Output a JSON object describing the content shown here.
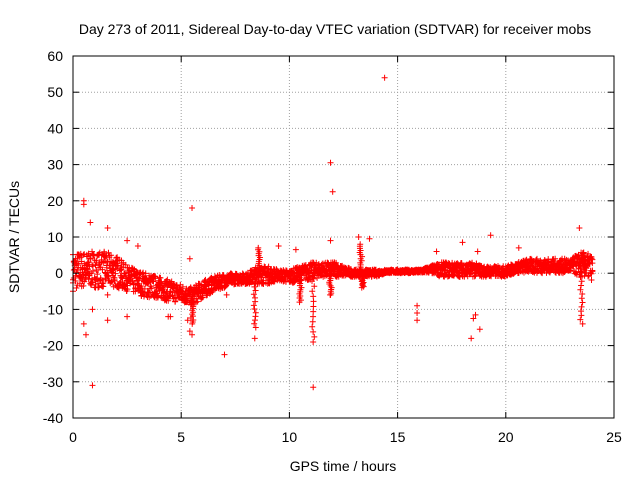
{
  "chart_data": {
    "type": "scatter",
    "title": "Day 273 of 2011, Sidereal Day-to-day VTEC variation (SDTVAR) for receiver mobs",
    "xlabel": "GPS time / hours",
    "ylabel": "SDTVAR / TECUs",
    "xlim": [
      0,
      25
    ],
    "ylim": [
      -40,
      60
    ],
    "xticks": [
      0,
      5,
      10,
      15,
      20,
      25
    ],
    "yticks": [
      -40,
      -30,
      -20,
      -10,
      0,
      10,
      20,
      30,
      40,
      50,
      60
    ],
    "grid": true,
    "marker": "+",
    "colors": {
      "series": "#ff0000",
      "grid": "#a0a0a0",
      "axis": "#000000"
    },
    "series": [
      {
        "name": "SDTVAR",
        "band": {
          "x": [
            0,
            0.5,
            1,
            1.5,
            2,
            2.5,
            3,
            3.5,
            4,
            4.5,
            5,
            5.5,
            6,
            6.5,
            7,
            7.5,
            8,
            8.5,
            9,
            9.5,
            10,
            10.5,
            11,
            11.5,
            12,
            12.5,
            13,
            13.5,
            14,
            14.5,
            15,
            15.5,
            16,
            16.5,
            17,
            17.5,
            18,
            18.5,
            19,
            19.5,
            20,
            20.5,
            21,
            21.5,
            22,
            22.5,
            23,
            23.5,
            24
          ],
          "upper": [
            6,
            6,
            6,
            6,
            5,
            2,
            1,
            0,
            -1,
            -2,
            -3,
            -4,
            -2,
            -1,
            0,
            0,
            0,
            2,
            2,
            1,
            1,
            2,
            3,
            3,
            3,
            2,
            1,
            1,
            1,
            1,
            1,
            1,
            1,
            2,
            3,
            3,
            3,
            3,
            2,
            2,
            2,
            3,
            4,
            4,
            4,
            4,
            4,
            6,
            5
          ],
          "lower": [
            -5,
            -4,
            -4,
            -4,
            -4,
            -5,
            -6,
            -7,
            -7,
            -8,
            -8,
            -9,
            -7,
            -5,
            -4,
            -3,
            -3,
            -3,
            -3,
            -2,
            -3,
            -2,
            -2,
            -1,
            -1,
            -1,
            -1,
            -1,
            -1,
            0,
            0,
            0,
            0,
            0,
            -1,
            -1,
            -1,
            -1,
            -1,
            -1,
            -1,
            0,
            0,
            0,
            0,
            0,
            0,
            -1,
            -2
          ]
        },
        "spikes": [
          {
            "x": 5.5,
            "to": -14
          },
          {
            "x": 8.4,
            "to": -15
          },
          {
            "x": 8.6,
            "to": 7
          },
          {
            "x": 10.5,
            "to": -8
          },
          {
            "x": 11.1,
            "to": -19
          },
          {
            "x": 11.9,
            "to": -6
          },
          {
            "x": 12.1,
            "to": 3
          },
          {
            "x": 13.3,
            "to": 8
          },
          {
            "x": 13.4,
            "to": -4
          },
          {
            "x": 23.5,
            "to": -14
          },
          {
            "x": 23.6,
            "to": 5
          }
        ],
        "points": [
          {
            "x": 14.4,
            "y": 54
          },
          {
            "x": 11.9,
            "y": 30.5
          },
          {
            "x": 12.0,
            "y": 22.5
          },
          {
            "x": 0.5,
            "y": 20
          },
          {
            "x": 0.5,
            "y": 19
          },
          {
            "x": 5.5,
            "y": 18
          },
          {
            "x": 0.8,
            "y": 14
          },
          {
            "x": 1.6,
            "y": 12.5
          },
          {
            "x": 23.4,
            "y": 12.5
          },
          {
            "x": 19.3,
            "y": 10.5
          },
          {
            "x": 13.2,
            "y": 10
          },
          {
            "x": 13.7,
            "y": 9.5
          },
          {
            "x": 2.5,
            "y": 9
          },
          {
            "x": 11.9,
            "y": 9
          },
          {
            "x": 18.0,
            "y": 8.5
          },
          {
            "x": 3.0,
            "y": 7.5
          },
          {
            "x": 9.5,
            "y": 7.5
          },
          {
            "x": 20.6,
            "y": 7
          },
          {
            "x": 10.3,
            "y": 6.5
          },
          {
            "x": 16.8,
            "y": 6
          },
          {
            "x": 18.7,
            "y": 6
          },
          {
            "x": 5.4,
            "y": 4
          },
          {
            "x": 15.9,
            "y": -9
          },
          {
            "x": 15.9,
            "y": -11
          },
          {
            "x": 15.9,
            "y": -13
          },
          {
            "x": 0.9,
            "y": -10
          },
          {
            "x": 2.5,
            "y": -12
          },
          {
            "x": 1.6,
            "y": -13
          },
          {
            "x": 1.6,
            "y": -6
          },
          {
            "x": 4.4,
            "y": -12
          },
          {
            "x": 4.5,
            "y": -12
          },
          {
            "x": 0.5,
            "y": -14
          },
          {
            "x": 0.6,
            "y": -17
          },
          {
            "x": 5.3,
            "y": -13
          },
          {
            "x": 5.4,
            "y": -16
          },
          {
            "x": 5.5,
            "y": -17
          },
          {
            "x": 18.6,
            "y": -11.5
          },
          {
            "x": 18.5,
            "y": -12.5
          },
          {
            "x": 18.8,
            "y": -15.5
          },
          {
            "x": 18.4,
            "y": -18
          },
          {
            "x": 8.4,
            "y": -18
          },
          {
            "x": 7.0,
            "y": -22.5
          },
          {
            "x": 0.9,
            "y": -31
          },
          {
            "x": 11.1,
            "y": -31.5
          },
          {
            "x": 11.9,
            "y": -6
          },
          {
            "x": 7.1,
            "y": -6
          }
        ]
      }
    ]
  }
}
